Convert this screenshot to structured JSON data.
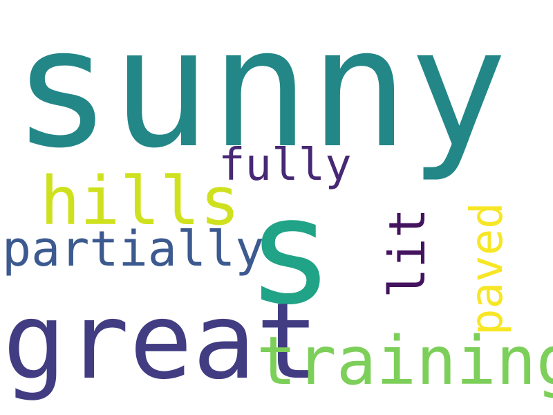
{
  "colors": {
    "background": "#ffffff",
    "sunny": "#238788",
    "s": "#20a386",
    "great": "#423d82",
    "training": "#7ccf58",
    "hills": "#cfe11e",
    "partially": "#3c5a8f",
    "fully": "#472875",
    "lit": "#43135e",
    "paved": "#f7e625"
  },
  "words": {
    "sunny": "sunny",
    "s": "s",
    "great": "great",
    "training": "training",
    "hills": "hills",
    "partially": "partially",
    "fully": "fully",
    "lit": "lit",
    "paved": "paved"
  }
}
